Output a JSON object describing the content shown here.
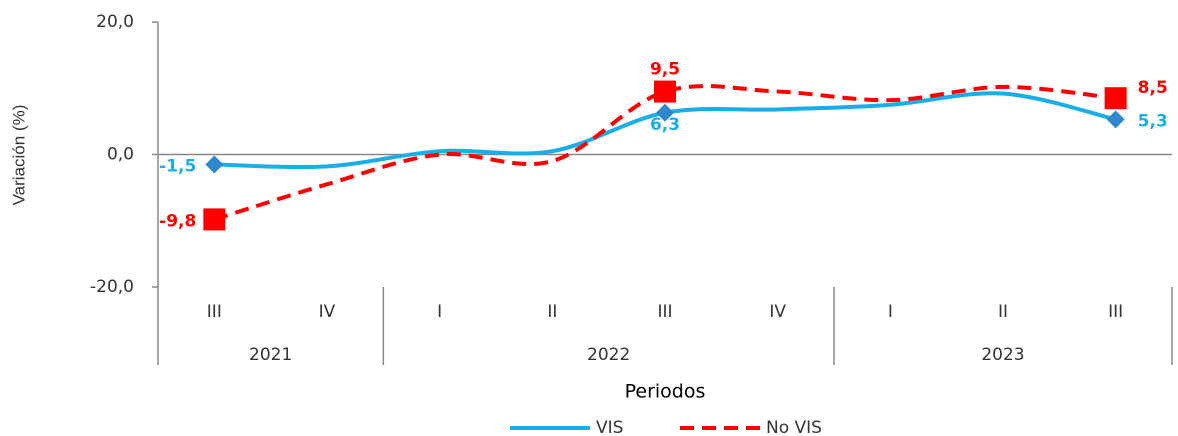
{
  "chart_data": {
    "type": "line",
    "y_label": "Variación (%)",
    "x_label": "Periodos",
    "categories": [
      "III",
      "IV",
      "I",
      "II",
      "III",
      "IV",
      "I",
      "II",
      "III"
    ],
    "x_groups": [
      {
        "name": "2021",
        "count": 2
      },
      {
        "name": "2022",
        "count": 4
      },
      {
        "name": "2023",
        "count": 3
      }
    ],
    "ylim": [
      -20,
      20
    ],
    "yticks": [
      {
        "value": 20,
        "label": "20,0"
      },
      {
        "value": 0,
        "label": "0,0"
      },
      {
        "value": -20,
        "label": "-20,0"
      }
    ],
    "series": [
      {
        "name": "VIS",
        "color": "#1aaee8",
        "marker_color": "#2f88cc",
        "dashed": false,
        "values": [
          -1.5,
          -1.8,
          0.5,
          0.5,
          6.3,
          6.8,
          7.5,
          9.2,
          5.3
        ],
        "value_labels": [
          "-1,5",
          null,
          null,
          null,
          "6,3",
          null,
          null,
          null,
          "5,3"
        ]
      },
      {
        "name": "No VIS",
        "color": "#ff0000",
        "marker_color": "#ff0000",
        "dashed": true,
        "values": [
          -9.8,
          -4.5,
          0,
          -1,
          9.5,
          9.5,
          8.2,
          10.2,
          8.5
        ],
        "value_labels": [
          "-9,8",
          null,
          null,
          null,
          "9,5",
          null,
          null,
          null,
          "8,5"
        ]
      }
    ]
  }
}
